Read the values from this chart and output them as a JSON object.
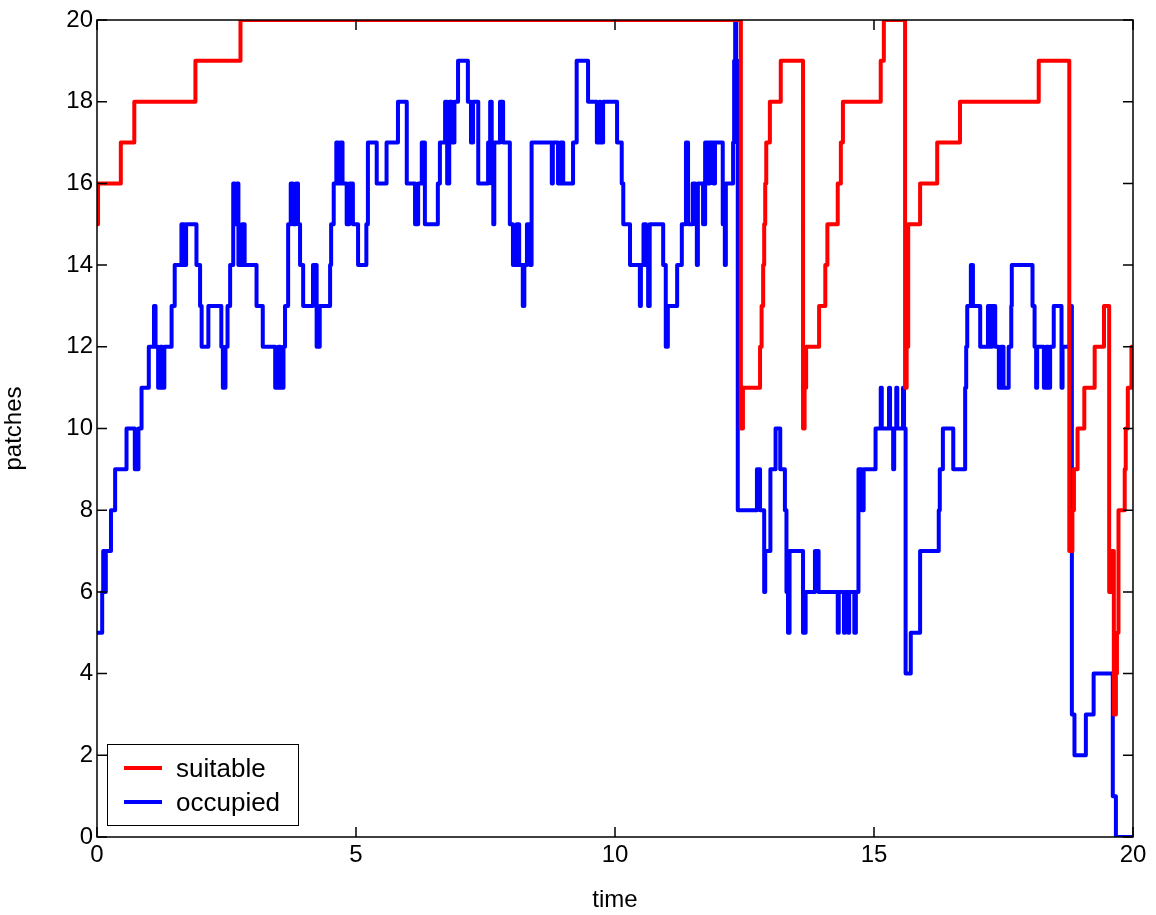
{
  "chart_data": {
    "type": "step",
    "xlabel": "time",
    "ylabel": "patches",
    "xlim": [
      0,
      20
    ],
    "ylim": [
      0,
      20
    ],
    "xticks": [
      0,
      5,
      10,
      15,
      20
    ],
    "yticks": [
      0,
      2,
      4,
      6,
      8,
      10,
      12,
      14,
      16,
      18,
      20
    ],
    "grid": false,
    "legend": "bottom left",
    "marker": "none",
    "line_style": "solid",
    "series": [
      {
        "name": "suitable",
        "color": "#ff0000",
        "x": [
          0,
          0.02,
          0.46,
          0.72,
          1.9,
          2.77,
          12.43,
          12.47,
          12.8,
          12.83,
          12.86,
          12.88,
          12.9,
          12.92,
          12.99,
          13.2,
          13.63,
          13.66,
          13.69,
          13.94,
          14.06,
          14.1,
          14.3,
          14.36,
          14.4,
          15.13,
          15.19,
          15.6,
          15.63,
          15.66,
          15.89,
          16.22,
          16.66,
          18.18,
          18.77,
          18.83,
          18.86,
          18.93,
          19.06,
          19.26,
          19.44,
          19.54,
          19.57,
          19.63,
          19.67,
          19.69,
          19.72,
          19.84,
          19.86,
          19.9,
          19.97,
          20
        ],
        "values": [
          15,
          16,
          17,
          18,
          19,
          20,
          10,
          11,
          12,
          13,
          14,
          15,
          16,
          17,
          18,
          19,
          10,
          11,
          12,
          13,
          14,
          15,
          16,
          17,
          18,
          19,
          20,
          11,
          12,
          15,
          16,
          17,
          18,
          19,
          7,
          8,
          9,
          10,
          11,
          12,
          13,
          6,
          7,
          3,
          4,
          5,
          8,
          9,
          10,
          11,
          12,
          12
        ]
      },
      {
        "name": "occupied",
        "color": "#0000ff",
        "x": [
          0,
          0.1,
          0.12,
          0.15,
          0.17,
          0.27,
          0.35,
          0.57,
          0.73,
          0.8,
          0.86,
          1.0,
          1.1,
          1.13,
          1.18,
          1.22,
          1.26,
          1.3,
          1.44,
          1.5,
          1.63,
          1.68,
          1.72,
          1.92,
          1.99,
          2.02,
          2.15,
          2.4,
          2.43,
          2.48,
          2.52,
          2.57,
          2.63,
          2.66,
          2.7,
          2.73,
          2.8,
          2.85,
          3.08,
          3.2,
          3.44,
          3.5,
          3.54,
          3.6,
          3.63,
          3.69,
          3.74,
          3.78,
          3.84,
          3.88,
          3.92,
          3.98,
          4.17,
          4.24,
          4.3,
          4.5,
          4.52,
          4.57,
          4.62,
          4.66,
          4.7,
          4.74,
          4.82,
          4.87,
          4.94,
          5.04,
          5.2,
          5.23,
          5.4,
          5.59,
          5.81,
          5.98,
          6.14,
          6.2,
          6.27,
          6.33,
          6.58,
          6.62,
          6.72,
          6.76,
          6.8,
          6.85,
          6.9,
          6.97,
          7.16,
          7.22,
          7.26,
          7.36,
          7.55,
          7.59,
          7.62,
          7.65,
          7.67,
          7.78,
          7.84,
          7.97,
          8.03,
          8.1,
          8.15,
          8.22,
          8.25,
          8.3,
          8.36,
          8.39,
          8.78,
          8.8,
          8.9,
          8.95,
          9.0,
          9.19,
          9.26,
          9.48,
          9.65,
          9.7,
          9.72,
          9.77,
          10.04,
          10.13,
          10.16,
          10.29,
          10.48,
          10.5,
          10.55,
          10.6,
          10.64,
          10.67,
          10.93,
          10.98,
          11.02,
          11.2,
          11.29,
          11.37,
          11.41,
          11.5,
          11.55,
          11.58,
          11.6,
          11.7,
          11.74,
          11.8,
          11.83,
          11.9,
          11.93,
          12.08,
          12.12,
          12.14,
          12.28,
          12.3,
          12.32,
          12.34,
          12.37,
          12.74,
          12.8,
          12.88,
          12.9,
          13.0,
          13.1,
          13.19,
          13.28,
          13.31,
          13.34,
          13.37,
          13.63,
          13.68,
          13.86,
          13.93,
          14.3,
          14.32,
          14.42,
          14.44,
          14.5,
          14.52,
          14.62,
          14.65,
          14.7,
          14.76,
          14.8,
          15.03,
          15.13,
          15.15,
          15.29,
          15.31,
          15.37,
          15.39,
          15.43,
          15.45,
          15.56,
          15.58,
          15.61,
          15.71,
          15.89,
          16.25,
          16.27,
          16.33,
          16.53,
          16.76,
          16.78,
          16.8,
          16.87,
          16.91,
          17.05,
          17.2,
          17.25,
          17.28,
          17.34,
          17.41,
          17.45,
          17.5,
          17.6,
          17.65,
          17.66,
          18.06,
          18.1,
          18.13,
          18.15,
          18.28,
          18.32,
          18.37,
          18.4,
          18.47,
          18.62,
          18.64,
          18.78,
          18.82,
          18.87,
          19.09,
          19.24,
          19.61,
          19.67,
          20
        ],
        "values": [
          5,
          6,
          7,
          6,
          7,
          8,
          9,
          10,
          9,
          10,
          11,
          12,
          13,
          12,
          11,
          12,
          11,
          12,
          13,
          14,
          15,
          14,
          15,
          14,
          13,
          12,
          13,
          12,
          11,
          12,
          13,
          14,
          16,
          15,
          16,
          14,
          15,
          14,
          13,
          12,
          11,
          12,
          11,
          12,
          13,
          15,
          16,
          15,
          16,
          15,
          14,
          13,
          14,
          12,
          13,
          14,
          15,
          16,
          17,
          16,
          17,
          16,
          15,
          16,
          15,
          14,
          15,
          17,
          16,
          17,
          18,
          16,
          15,
          16,
          17,
          15,
          16,
          17,
          18,
          16,
          18,
          17,
          18,
          19,
          18,
          17,
          18,
          16,
          17,
          18,
          16,
          15,
          17,
          18,
          17,
          15,
          14,
          15,
          14,
          13,
          14,
          15,
          14,
          17,
          16,
          17,
          16,
          17,
          16,
          17,
          19,
          18,
          17,
          18,
          17,
          18,
          17,
          16,
          15,
          14,
          13,
          14,
          15,
          14,
          13,
          15,
          14,
          12,
          13,
          14,
          15,
          17,
          15,
          16,
          15,
          14,
          16,
          15,
          17,
          16,
          17,
          16,
          17,
          15,
          14,
          16,
          17,
          19,
          20,
          19,
          8,
          9,
          8,
          6,
          7,
          9,
          10,
          9,
          8,
          6,
          5,
          7,
          5,
          6,
          7,
          6,
          5,
          6,
          5,
          6,
          5,
          6,
          5,
          6,
          9,
          8,
          9,
          10,
          11,
          10,
          11,
          10,
          9,
          10,
          11,
          10,
          11,
          10,
          4,
          5,
          7,
          8,
          9,
          10,
          9,
          11,
          12,
          13,
          14,
          13,
          12,
          13,
          12,
          13,
          12,
          11,
          12,
          11,
          12,
          13,
          14,
          13,
          12,
          11,
          12,
          11,
          12,
          11,
          12,
          13,
          11,
          12,
          13,
          3,
          2,
          3,
          4,
          1,
          0,
          0
        ]
      }
    ]
  }
}
